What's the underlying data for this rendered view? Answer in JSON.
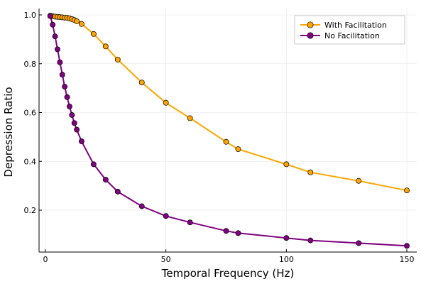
{
  "chart_data": {
    "type": "line",
    "xlabel": "Temporal Frequency (Hz)",
    "ylabel": "Depression Ratio",
    "xlim": [
      0,
      150
    ],
    "ylim": [
      0.1,
      1.0
    ],
    "xticks": [
      0,
      50,
      100,
      150
    ],
    "yticks": [
      0.2,
      0.4,
      0.6,
      0.8,
      1.0
    ],
    "grid": true,
    "legend_position": "top-right",
    "series": [
      {
        "name": "With Facilitation",
        "color": "#FFA500",
        "x": [
          2,
          3,
          4,
          5,
          6,
          7,
          8,
          9,
          10,
          11,
          12,
          13,
          15,
          20,
          25,
          30,
          40,
          50,
          60,
          75,
          80,
          100,
          110,
          130,
          150
        ],
        "y": [
          0.997,
          0.995,
          0.993,
          0.992,
          0.991,
          0.99,
          0.989,
          0.988,
          0.986,
          0.983,
          0.979,
          0.974,
          0.963,
          0.922,
          0.871,
          0.817,
          0.723,
          0.64,
          0.577,
          0.48,
          0.45,
          0.388,
          0.355,
          0.32,
          0.281
        ]
      },
      {
        "name": "No Facilitation",
        "color": "#800080",
        "x": [
          2,
          3,
          4,
          5,
          6,
          7,
          8,
          9,
          10,
          11,
          12,
          13,
          15,
          20,
          25,
          30,
          40,
          50,
          60,
          75,
          80,
          100,
          110,
          130,
          150
        ],
        "y": [
          0.995,
          0.96,
          0.912,
          0.859,
          0.806,
          0.755,
          0.706,
          0.663,
          0.625,
          0.59,
          0.557,
          0.53,
          0.482,
          0.388,
          0.325,
          0.276,
          0.216,
          0.176,
          0.15,
          0.115,
          0.106,
          0.086,
          0.076,
          0.065,
          0.054
        ]
      }
    ]
  }
}
